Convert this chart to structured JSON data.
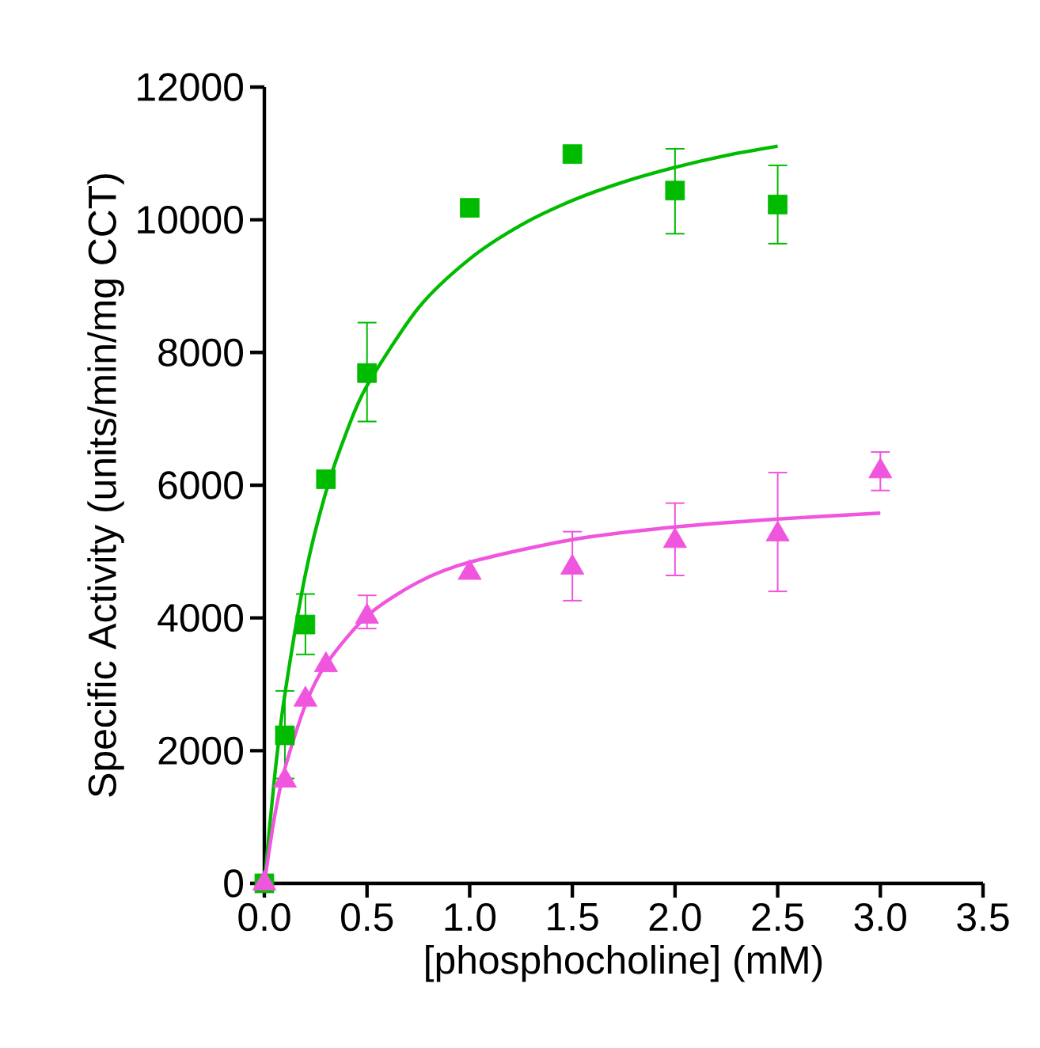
{
  "chart_data": {
    "type": "scatter",
    "xlabel": "[phosphocholine] (mM)",
    "ylabel": "Specific Activity (units/min/mg CCT)",
    "xlim": [
      0,
      3.5
    ],
    "xticks": [
      {
        "value": 0,
        "label": "0.0"
      },
      {
        "value": 0.5,
        "label": "0.5"
      },
      {
        "value": 1,
        "label": "1.0"
      },
      {
        "value": 1.5,
        "label": "1.5"
      },
      {
        "value": 2,
        "label": "2.0"
      },
      {
        "value": 2.5,
        "label": "2.5"
      },
      {
        "value": 3,
        "label": "3.0"
      },
      {
        "value": 3.5,
        "label": "3.5"
      }
    ],
    "ylim": [
      0,
      12000
    ],
    "yticks": [
      0,
      2000,
      4000,
      6000,
      8000,
      10000,
      12000
    ],
    "series": [
      {
        "type": "scatter",
        "marker": "square",
        "color": "#00bb00",
        "x": [
          0,
          0.1,
          0.2,
          0.3,
          0.5,
          1.0,
          1.5,
          2.0,
          2.5
        ],
        "values": [
          0,
          2230,
          3900,
          6090,
          7690,
          10180,
          10990,
          10440,
          10230
        ],
        "errors": [
          null,
          [
            1580,
            2900
          ],
          [
            3450,
            4360
          ],
          null,
          [
            6960,
            8450
          ],
          null,
          null,
          [
            9790,
            11070
          ],
          [
            9640,
            10820
          ]
        ]
      },
      {
        "type": "line",
        "marker": "none",
        "color": "#00bb00",
        "x": [
          0,
          0.05,
          0.1,
          0.2,
          0.3,
          0.4,
          0.5,
          0.75,
          1,
          1.25,
          1.5,
          1.75,
          2,
          2.25,
          2.5
        ],
        "values": [
          0,
          1610,
          2850,
          4660,
          5900,
          6800,
          7500,
          8670,
          9410,
          9920,
          10290,
          10570,
          10790,
          10970,
          11110
        ]
      },
      {
        "type": "scatter",
        "marker": "triangle",
        "color": "#f055dd",
        "x": [
          0,
          0.1,
          0.2,
          0.3,
          0.5,
          1.0,
          1.5,
          2.0,
          2.5,
          3.0
        ],
        "values": [
          0,
          1550,
          2770,
          3290,
          4020,
          4680,
          4760,
          5160,
          5260,
          6210
        ],
        "errors": [
          null,
          null,
          null,
          null,
          [
            3840,
            4340
          ],
          null,
          [
            4260,
            5300
          ],
          [
            4640,
            5730
          ],
          [
            4400,
            6190
          ],
          [
            5920,
            6500
          ]
        ]
      },
      {
        "type": "line",
        "marker": "none",
        "color": "#f055dd",
        "x": [
          0,
          0.05,
          0.1,
          0.2,
          0.3,
          0.5,
          0.75,
          1,
          1.5,
          2,
          2.5,
          3
        ],
        "values": [
          0,
          1010,
          1730,
          2690,
          3300,
          4030,
          4540,
          4840,
          5180,
          5370,
          5490,
          5580
        ]
      }
    ]
  }
}
